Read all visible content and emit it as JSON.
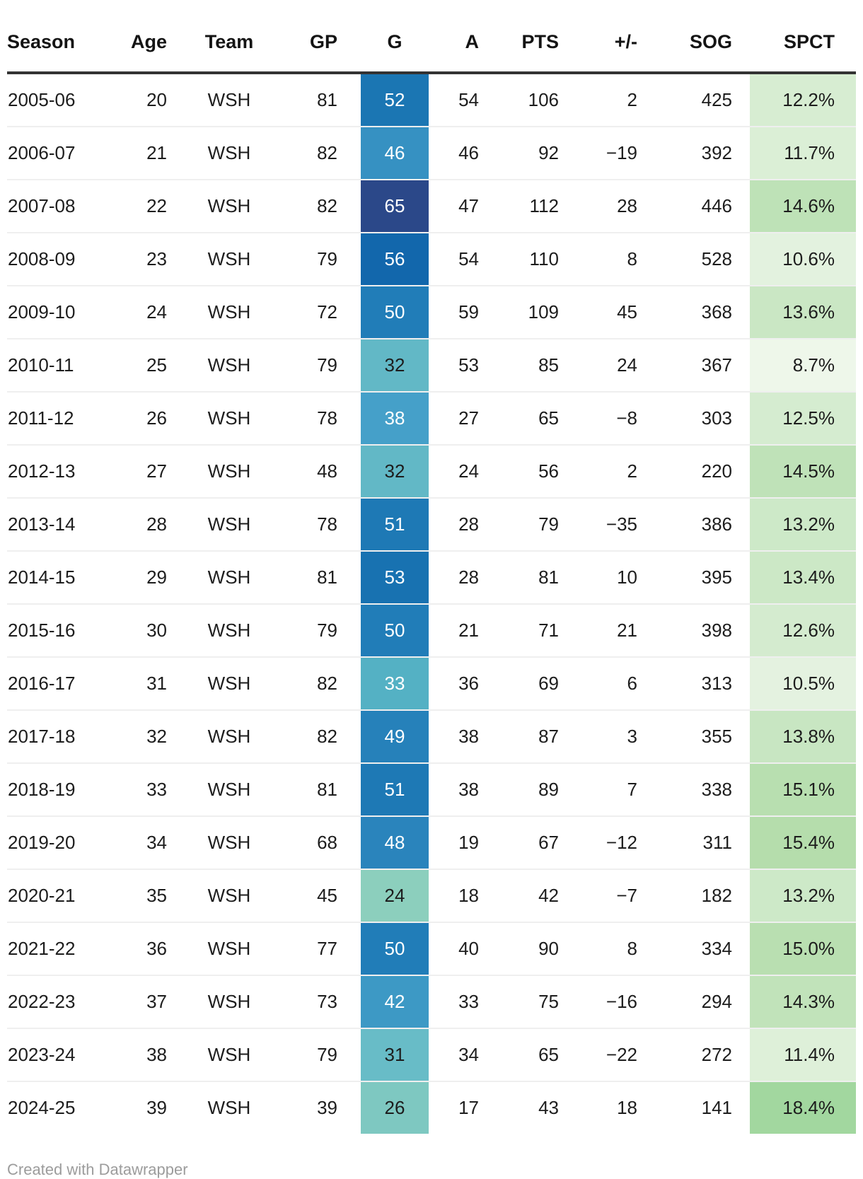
{
  "chart_data": {
    "type": "table",
    "columns": [
      {
        "key": "season",
        "label": "Season"
      },
      {
        "key": "age",
        "label": "Age"
      },
      {
        "key": "team",
        "label": "Team"
      },
      {
        "key": "gp",
        "label": "GP"
      },
      {
        "key": "g",
        "label": "G"
      },
      {
        "key": "a",
        "label": "A"
      },
      {
        "key": "pts",
        "label": "PTS"
      },
      {
        "key": "plus_minus",
        "label": "+/-"
      },
      {
        "key": "sog",
        "label": "SOG"
      },
      {
        "key": "spct",
        "label": "SPCT"
      }
    ],
    "heatmap_columns": [
      "g",
      "spct"
    ],
    "rows": [
      {
        "season": "2005-06",
        "age": "20",
        "team": "WSH",
        "gp": "81",
        "g": "52",
        "a": "54",
        "pts": "106",
        "plus_minus": "2",
        "sog": "425",
        "spct": "12.2%",
        "g_bg": "#1b76b3",
        "g_text": "#ffffff",
        "spct_bg": "#d7edd2"
      },
      {
        "season": "2006-07",
        "age": "21",
        "team": "WSH",
        "gp": "82",
        "g": "46",
        "a": "46",
        "pts": "92",
        "plus_minus": "−19",
        "sog": "392",
        "spct": "11.7%",
        "g_bg": "#3691c2",
        "g_text": "#ffffff",
        "spct_bg": "#dbefd6"
      },
      {
        "season": "2007-08",
        "age": "22",
        "team": "WSH",
        "gp": "82",
        "g": "65",
        "a": "47",
        "pts": "112",
        "plus_minus": "28",
        "sog": "446",
        "spct": "14.6%",
        "g_bg": "#2b4889",
        "g_text": "#ffffff",
        "spct_bg": "#bee2b7"
      },
      {
        "season": "2008-09",
        "age": "23",
        "team": "WSH",
        "gp": "79",
        "g": "56",
        "a": "54",
        "pts": "110",
        "plus_minus": "8",
        "sog": "528",
        "spct": "10.6%",
        "g_bg": "#1267ac",
        "g_text": "#ffffff",
        "spct_bg": "#e3f2df"
      },
      {
        "season": "2009-10",
        "age": "24",
        "team": "WSH",
        "gp": "72",
        "g": "50",
        "a": "59",
        "pts": "109",
        "plus_minus": "45",
        "sog": "368",
        "spct": "13.6%",
        "g_bg": "#217db8",
        "g_text": "#ffffff",
        "spct_bg": "#cae7c4"
      },
      {
        "season": "2010-11",
        "age": "25",
        "team": "WSH",
        "gp": "79",
        "g": "32",
        "a": "53",
        "pts": "85",
        "plus_minus": "24",
        "sog": "367",
        "spct": "8.7%",
        "g_bg": "#62b8c6",
        "g_text": "#1d1d1d",
        "spct_bg": "#eef7ea"
      },
      {
        "season": "2011-12",
        "age": "26",
        "team": "WSH",
        "gp": "78",
        "g": "38",
        "a": "27",
        "pts": "65",
        "plus_minus": "−8",
        "sog": "303",
        "spct": "12.5%",
        "g_bg": "#45a0c9",
        "g_text": "#ffffff",
        "spct_bg": "#d5ecd0"
      },
      {
        "season": "2012-13",
        "age": "27",
        "team": "WSH",
        "gp": "48",
        "g": "32",
        "a": "24",
        "pts": "56",
        "plus_minus": "2",
        "sog": "220",
        "spct": "14.5%",
        "g_bg": "#62b8c6",
        "g_text": "#1d1d1d",
        "spct_bg": "#bfe2b8"
      },
      {
        "season": "2013-14",
        "age": "28",
        "team": "WSH",
        "gp": "78",
        "g": "51",
        "a": "28",
        "pts": "79",
        "plus_minus": "−35",
        "sog": "386",
        "spct": "13.2%",
        "g_bg": "#1e79b5",
        "g_text": "#ffffff",
        "spct_bg": "#cde9c8"
      },
      {
        "season": "2014-15",
        "age": "29",
        "team": "WSH",
        "gp": "81",
        "g": "53",
        "a": "28",
        "pts": "81",
        "plus_minus": "10",
        "sog": "395",
        "spct": "13.4%",
        "g_bg": "#1872b1",
        "g_text": "#ffffff",
        "spct_bg": "#cce8c6"
      },
      {
        "season": "2015-16",
        "age": "30",
        "team": "WSH",
        "gp": "79",
        "g": "50",
        "a": "21",
        "pts": "71",
        "plus_minus": "21",
        "sog": "398",
        "spct": "12.6%",
        "g_bg": "#217db8",
        "g_text": "#ffffff",
        "spct_bg": "#d4ebcf"
      },
      {
        "season": "2016-17",
        "age": "31",
        "team": "WSH",
        "gp": "82",
        "g": "33",
        "a": "36",
        "pts": "69",
        "plus_minus": "6",
        "sog": "313",
        "spct": "10.5%",
        "g_bg": "#54b1c4",
        "g_text": "#ffffff",
        "spct_bg": "#e4f2e0"
      },
      {
        "season": "2017-18",
        "age": "32",
        "team": "WSH",
        "gp": "82",
        "g": "49",
        "a": "38",
        "pts": "87",
        "plus_minus": "3",
        "sog": "355",
        "spct": "13.8%",
        "g_bg": "#2681ba",
        "g_text": "#ffffff",
        "spct_bg": "#c8e6c2"
      },
      {
        "season": "2018-19",
        "age": "33",
        "team": "WSH",
        "gp": "81",
        "g": "51",
        "a": "38",
        "pts": "89",
        "plus_minus": "7",
        "sog": "338",
        "spct": "15.1%",
        "g_bg": "#1e79b5",
        "g_text": "#ffffff",
        "spct_bg": "#b8dfb0"
      },
      {
        "season": "2019-20",
        "age": "34",
        "team": "WSH",
        "gp": "68",
        "g": "48",
        "a": "19",
        "pts": "67",
        "plus_minus": "−12",
        "sog": "311",
        "spct": "15.4%",
        "g_bg": "#2a84bc",
        "g_text": "#ffffff",
        "spct_bg": "#b5ddac"
      },
      {
        "season": "2020-21",
        "age": "35",
        "team": "WSH",
        "gp": "45",
        "g": "24",
        "a": "18",
        "pts": "42",
        "plus_minus": "−7",
        "sog": "182",
        "spct": "13.2%",
        "g_bg": "#8ccfbd",
        "g_text": "#1d1d1d",
        "spct_bg": "#cde9c8"
      },
      {
        "season": "2021-22",
        "age": "36",
        "team": "WSH",
        "gp": "77",
        "g": "50",
        "a": "40",
        "pts": "90",
        "plus_minus": "8",
        "sog": "334",
        "spct": "15.0%",
        "g_bg": "#217db8",
        "g_text": "#ffffff",
        "spct_bg": "#b9dfb1"
      },
      {
        "season": "2022-23",
        "age": "37",
        "team": "WSH",
        "gp": "73",
        "g": "42",
        "a": "33",
        "pts": "75",
        "plus_minus": "−16",
        "sog": "294",
        "spct": "14.3%",
        "g_bg": "#3d99c5",
        "g_text": "#ffffff",
        "spct_bg": "#c1e3ba"
      },
      {
        "season": "2023-24",
        "age": "38",
        "team": "WSH",
        "gp": "79",
        "g": "31",
        "a": "34",
        "pts": "65",
        "plus_minus": "−22",
        "sog": "272",
        "spct": "11.4%",
        "g_bg": "#68bcc7",
        "g_text": "#1d1d1d",
        "spct_bg": "#def0d9"
      },
      {
        "season": "2024-25",
        "age": "39",
        "team": "WSH",
        "gp": "39",
        "g": "26",
        "a": "17",
        "pts": "43",
        "plus_minus": "18",
        "sog": "141",
        "spct": "18.4%",
        "g_bg": "#7ec8c1",
        "g_text": "#1d1d1d",
        "spct_bg": "#a2d79f"
      }
    ]
  },
  "footer": {
    "credit": "Created with Datawrapper"
  },
  "colors": {
    "page_background": "#ffffff",
    "header_text": "#141414",
    "body_text": "#1d1d1d",
    "header_border": "#333333",
    "row_divider": "#efefef",
    "footer_text": "#9c9c9c"
  }
}
